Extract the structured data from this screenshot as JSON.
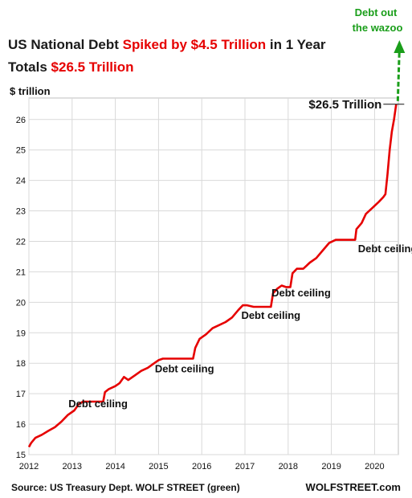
{
  "title": {
    "line1_prefix": "US National Debt ",
    "line1_highlight": "Spiked by $4.5 Trillion",
    "line1_suffix": " in 1 Year",
    "line2_prefix": "Totals ",
    "line2_highlight": "$26.5 Trillion"
  },
  "footer": {
    "source": "Source: US Treasury Dept. WOLF STREET (green)",
    "brand": "WOLFSTREET.com"
  },
  "colors": {
    "series": "#e60000",
    "highlight": "#e60000",
    "annotation_green": "#1a9e1a",
    "grid": "#d9d9d9",
    "text": "#111111"
  },
  "chart_data": {
    "type": "line",
    "ylabel": "$ trillion",
    "xlabel": "",
    "xlim": [
      2012,
      2020.55
    ],
    "ylim": [
      15,
      26.6
    ],
    "grid": true,
    "x_ticks": [
      2012,
      2013,
      2014,
      2015,
      2016,
      2017,
      2018,
      2019,
      2020
    ],
    "y_ticks": [
      15,
      16,
      17,
      18,
      19,
      20,
      21,
      22,
      23,
      24,
      25,
      26
    ],
    "series": [
      {
        "name": "",
        "color": "#e60000",
        "points": [
          [
            2012.0,
            15.25
          ],
          [
            2012.05,
            15.38
          ],
          [
            2012.15,
            15.55
          ],
          [
            2012.3,
            15.65
          ],
          [
            2012.45,
            15.78
          ],
          [
            2012.6,
            15.9
          ],
          [
            2012.75,
            16.08
          ],
          [
            2012.9,
            16.3
          ],
          [
            2013.05,
            16.45
          ],
          [
            2013.15,
            16.65
          ],
          [
            2013.25,
            16.74
          ],
          [
            2013.35,
            16.74
          ],
          [
            2013.72,
            16.74
          ],
          [
            2013.76,
            17.05
          ],
          [
            2013.85,
            17.15
          ],
          [
            2014.0,
            17.25
          ],
          [
            2014.1,
            17.35
          ],
          [
            2014.2,
            17.55
          ],
          [
            2014.3,
            17.45
          ],
          [
            2014.45,
            17.6
          ],
          [
            2014.6,
            17.75
          ],
          [
            2014.75,
            17.85
          ],
          [
            2014.9,
            18.0
          ],
          [
            2015.0,
            18.1
          ],
          [
            2015.1,
            18.15
          ],
          [
            2015.2,
            18.15
          ],
          [
            2015.8,
            18.15
          ],
          [
            2015.85,
            18.5
          ],
          [
            2015.95,
            18.8
          ],
          [
            2016.1,
            18.95
          ],
          [
            2016.25,
            19.15
          ],
          [
            2016.4,
            19.25
          ],
          [
            2016.55,
            19.35
          ],
          [
            2016.7,
            19.5
          ],
          [
            2016.85,
            19.75
          ],
          [
            2016.95,
            19.9
          ],
          [
            2017.05,
            19.9
          ],
          [
            2017.2,
            19.85
          ],
          [
            2017.6,
            19.85
          ],
          [
            2017.65,
            20.3
          ],
          [
            2017.75,
            20.45
          ],
          [
            2017.85,
            20.55
          ],
          [
            2017.95,
            20.5
          ],
          [
            2018.05,
            20.5
          ],
          [
            2018.1,
            20.95
          ],
          [
            2018.2,
            21.1
          ],
          [
            2018.35,
            21.1
          ],
          [
            2018.5,
            21.3
          ],
          [
            2018.65,
            21.45
          ],
          [
            2018.8,
            21.7
          ],
          [
            2018.95,
            21.95
          ],
          [
            2019.1,
            22.05
          ],
          [
            2019.2,
            22.05
          ],
          [
            2019.55,
            22.05
          ],
          [
            2019.58,
            22.4
          ],
          [
            2019.7,
            22.6
          ],
          [
            2019.8,
            22.9
          ],
          [
            2019.95,
            23.1
          ],
          [
            2020.1,
            23.3
          ],
          [
            2020.2,
            23.45
          ],
          [
            2020.25,
            23.55
          ],
          [
            2020.3,
            24.2
          ],
          [
            2020.35,
            25.0
          ],
          [
            2020.4,
            25.6
          ],
          [
            2020.45,
            26.0
          ],
          [
            2020.5,
            26.5
          ]
        ]
      }
    ],
    "annotations": [
      {
        "text": "Debt ceiling",
        "x": 2013.6,
        "y": 16.55
      },
      {
        "text": "Debt ceiling",
        "x": 2015.6,
        "y": 17.7
      },
      {
        "text": "Debt ceiling",
        "x": 2017.6,
        "y": 19.45
      },
      {
        "text": "Debt ceiling",
        "x": 2018.3,
        "y": 20.2
      },
      {
        "text": "Debt ceiling",
        "x": 2020.3,
        "y": 21.65
      }
    ],
    "callout": {
      "text": "$26.5 Trillion",
      "value": 26.5
    },
    "green_annotation": {
      "line1": "Debt out",
      "line2": "the wazoo"
    }
  }
}
